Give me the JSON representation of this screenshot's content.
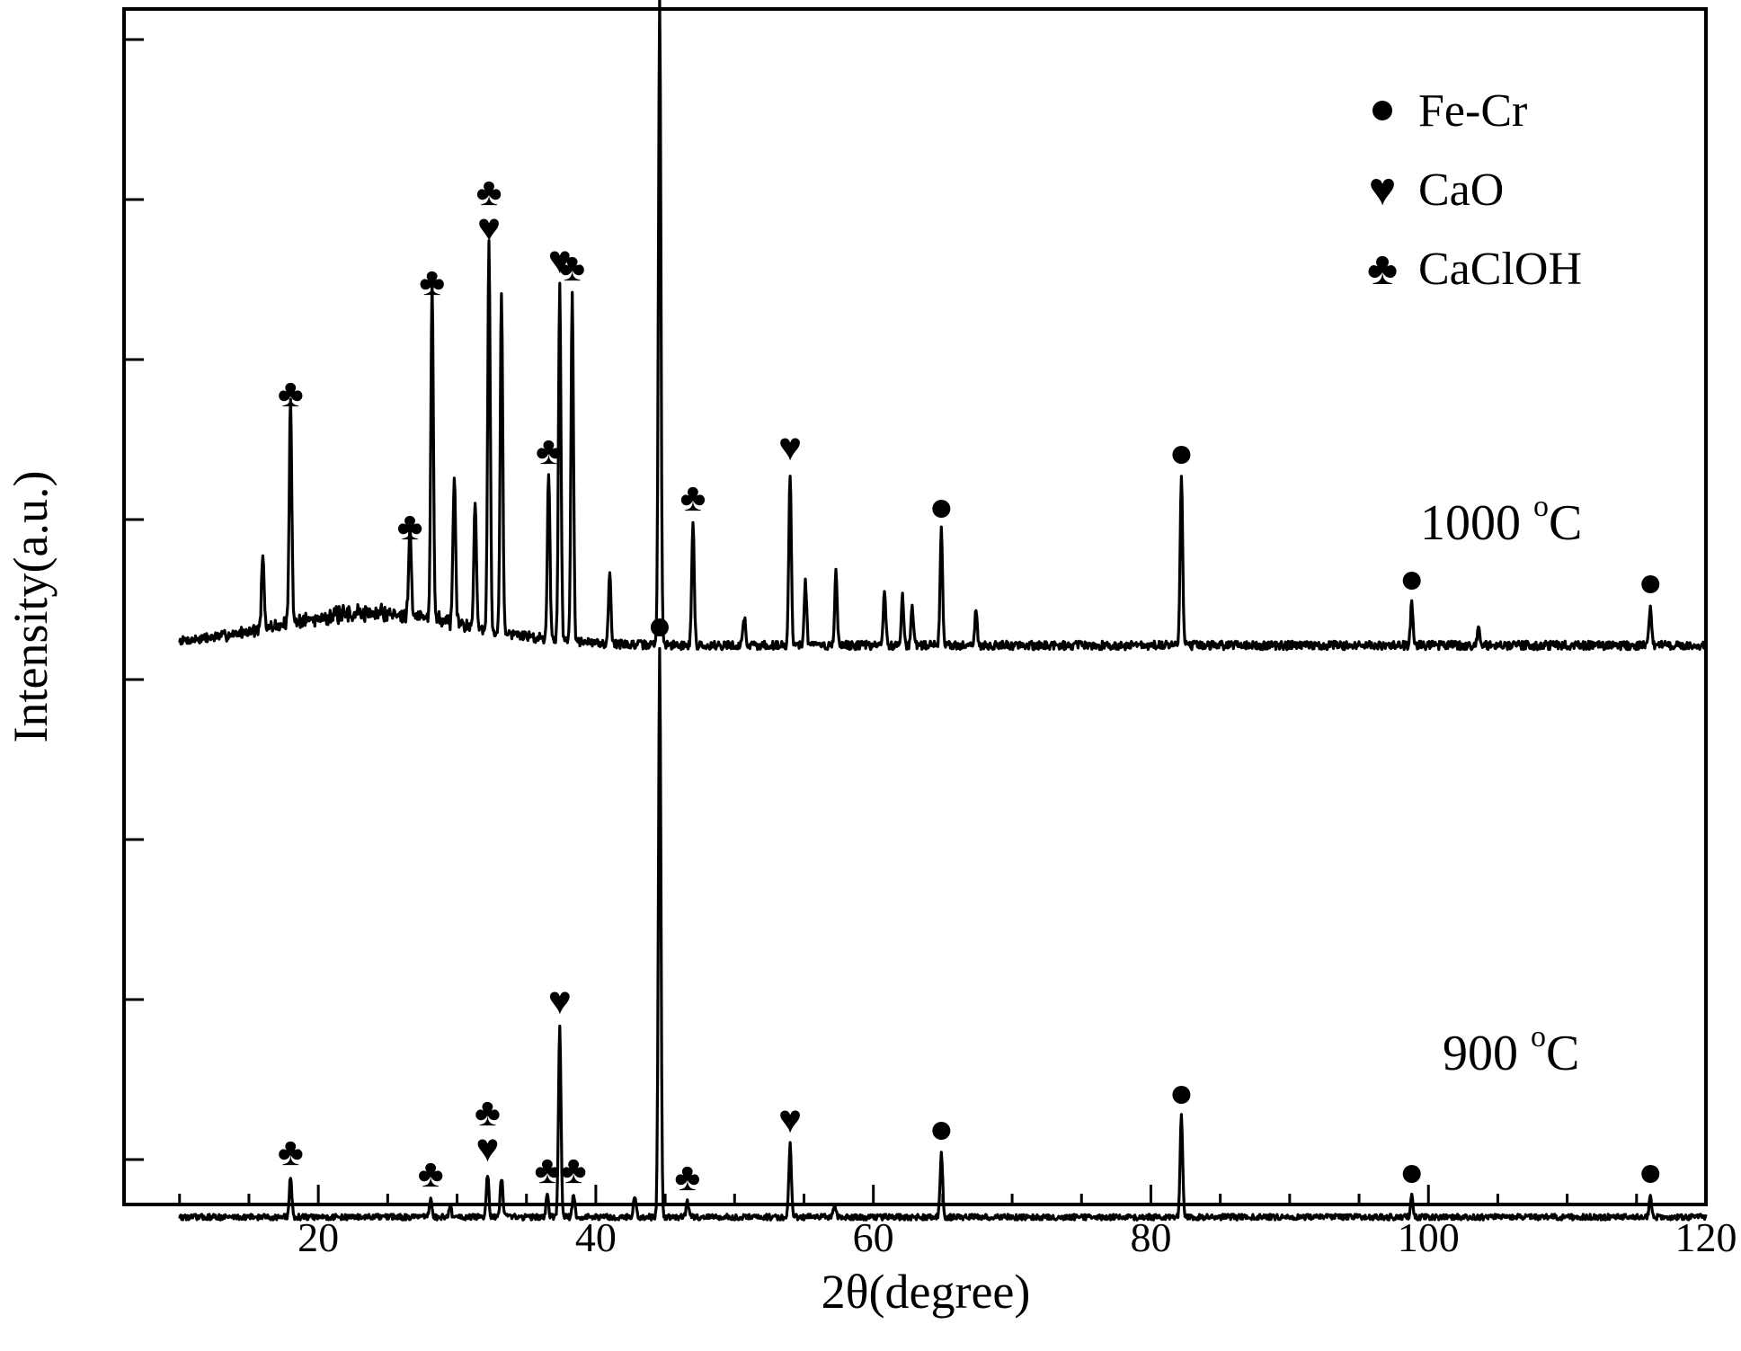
{
  "chart_data": {
    "type": "line",
    "xlabel": "2θ(degree)",
    "ylabel": "Intensity(a.u.)",
    "xlim": [
      6,
      120
    ],
    "x_ticks": [
      20,
      40,
      60,
      80,
      100,
      120
    ],
    "y_ticks_shown": false,
    "grid": false,
    "legend_position": "top-right",
    "legend": [
      {
        "symbol": "●",
        "label": "Fe-Cr",
        "marker": "fecr"
      },
      {
        "symbol": "♥",
        "label": "CaO",
        "marker": "cao"
      },
      {
        "symbol": "♣",
        "label": "CaClOH",
        "marker": "caclo"
      }
    ],
    "series": [
      {
        "name": "1000 °C",
        "label_main": "1000 ",
        "label_sup": "o",
        "label_unit": "C",
        "baseline": 0.0,
        "noise": 0.012,
        "amorphous_hump": {
          "center": 24,
          "width": 7,
          "height": 0.09
        },
        "peaks": [
          {
            "x": 16.0,
            "h": 0.2
          },
          {
            "x": 18.0,
            "h": 0.63,
            "marker": "caclo"
          },
          {
            "x": 26.6,
            "h": 0.26,
            "marker": "caclo"
          },
          {
            "x": 28.2,
            "h": 0.94,
            "marker": "caclo"
          },
          {
            "x": 29.8,
            "h": 0.4
          },
          {
            "x": 31.3,
            "h": 0.35
          },
          {
            "x": 32.3,
            "h": 1.09,
            "marker": "caclo+cao"
          },
          {
            "x": 33.2,
            "h": 0.95
          },
          {
            "x": 36.6,
            "h": 0.47,
            "marker": "caclo"
          },
          {
            "x": 37.4,
            "h": 1.0,
            "marker": "cao"
          },
          {
            "x": 38.3,
            "h": 0.98,
            "marker": "caclo"
          },
          {
            "x": 41.0,
            "h": 0.2
          },
          {
            "x": 44.6,
            "h": 1.8,
            "marker": "fecr"
          },
          {
            "x": 47.0,
            "h": 0.34,
            "marker": "caclo"
          },
          {
            "x": 50.7,
            "h": 0.08
          },
          {
            "x": 54.0,
            "h": 0.48,
            "marker": "cao"
          },
          {
            "x": 55.1,
            "h": 0.18
          },
          {
            "x": 57.3,
            "h": 0.2
          },
          {
            "x": 60.8,
            "h": 0.15
          },
          {
            "x": 62.1,
            "h": 0.14
          },
          {
            "x": 62.8,
            "h": 0.1
          },
          {
            "x": 64.9,
            "h": 0.32,
            "marker": "fecr"
          },
          {
            "x": 67.4,
            "h": 0.1
          },
          {
            "x": 82.2,
            "h": 0.47,
            "marker": "fecr"
          },
          {
            "x": 98.8,
            "h": 0.12,
            "marker": "fecr"
          },
          {
            "x": 103.6,
            "h": 0.05
          },
          {
            "x": 116.0,
            "h": 0.11,
            "marker": "fecr"
          }
        ]
      },
      {
        "name": "900 °C",
        "label_main": "900 ",
        "label_sup": "o",
        "label_unit": "C",
        "baseline": -1.59,
        "noise": 0.008,
        "amorphous_hump": {
          "center": 24,
          "width": 7,
          "height": 0.0
        },
        "peaks": [
          {
            "x": 18.0,
            "h": 0.11,
            "marker": "caclo"
          },
          {
            "x": 28.1,
            "h": 0.05,
            "marker": "caclo"
          },
          {
            "x": 29.5,
            "h": 0.03
          },
          {
            "x": 32.2,
            "h": 0.12,
            "marker": "caclo+cao"
          },
          {
            "x": 33.2,
            "h": 0.11
          },
          {
            "x": 36.5,
            "h": 0.06,
            "marker": "caclo"
          },
          {
            "x": 37.4,
            "h": 0.53,
            "marker": "cao"
          },
          {
            "x": 38.4,
            "h": 0.06,
            "marker": "caclo"
          },
          {
            "x": 42.8,
            "h": 0.06
          },
          {
            "x": 44.6,
            "h": 1.58,
            "marker": "fecr"
          },
          {
            "x": 46.6,
            "h": 0.04,
            "marker": "caclo"
          },
          {
            "x": 54.0,
            "h": 0.2,
            "marker": "cao"
          },
          {
            "x": 57.2,
            "h": 0.03
          },
          {
            "x": 64.9,
            "h": 0.18,
            "marker": "fecr"
          },
          {
            "x": 82.2,
            "h": 0.28,
            "marker": "fecr"
          },
          {
            "x": 98.8,
            "h": 0.06,
            "marker": "fecr"
          },
          {
            "x": 116.0,
            "h": 0.06,
            "marker": "fecr"
          }
        ]
      }
    ]
  }
}
